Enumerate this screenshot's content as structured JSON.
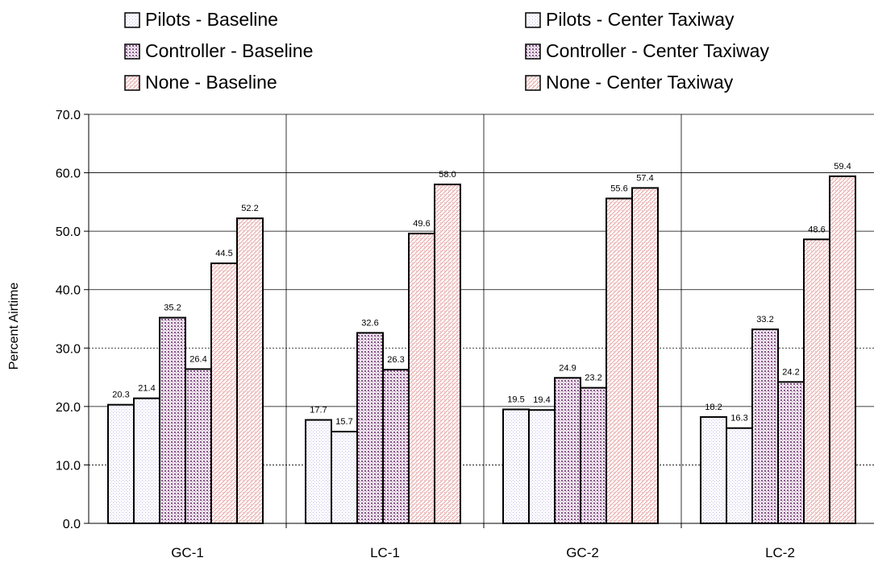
{
  "chart_data": {
    "type": "bar",
    "categories": [
      "GC-1",
      "LC-1",
      "GC-2",
      "LC-2"
    ],
    "series": [
      {
        "name": "Pilots - Baseline",
        "values": [
          20.3,
          17.7,
          19.5,
          18.2
        ],
        "pattern": "pilots",
        "color": "#b9b3e0"
      },
      {
        "name": "Pilots - Center Taxiway",
        "values": [
          21.4,
          15.7,
          19.4,
          16.3
        ],
        "pattern": "pilots",
        "color": "#b9b3e0"
      },
      {
        "name": "Controller - Baseline",
        "values": [
          35.2,
          32.6,
          24.9,
          33.2
        ],
        "pattern": "controller",
        "color": "#8a5a8c"
      },
      {
        "name": "Controller - Center Taxiway",
        "values": [
          26.4,
          26.3,
          23.2,
          24.2
        ],
        "pattern": "controller",
        "color": "#8a5a8c"
      },
      {
        "name": "None - Baseline",
        "values": [
          44.5,
          49.6,
          55.6,
          48.6
        ],
        "pattern": "none",
        "color": "#e39a9a"
      },
      {
        "name": "None - Center Taxiway",
        "values": [
          52.2,
          58.0,
          57.4,
          59.4
        ],
        "pattern": "none",
        "color": "#e39a9a"
      }
    ],
    "ylabel": "Percent Airtime",
    "xlabel": "",
    "ylim": [
      0,
      70
    ],
    "yticks": [
      "0.0",
      "10.0",
      "20.0",
      "30.0",
      "40.0",
      "50.0",
      "60.0",
      "70.0"
    ],
    "grid": "horizontal dashed at 10 and 30, solid at 20/40/50/60/70",
    "legend_position": "top"
  }
}
